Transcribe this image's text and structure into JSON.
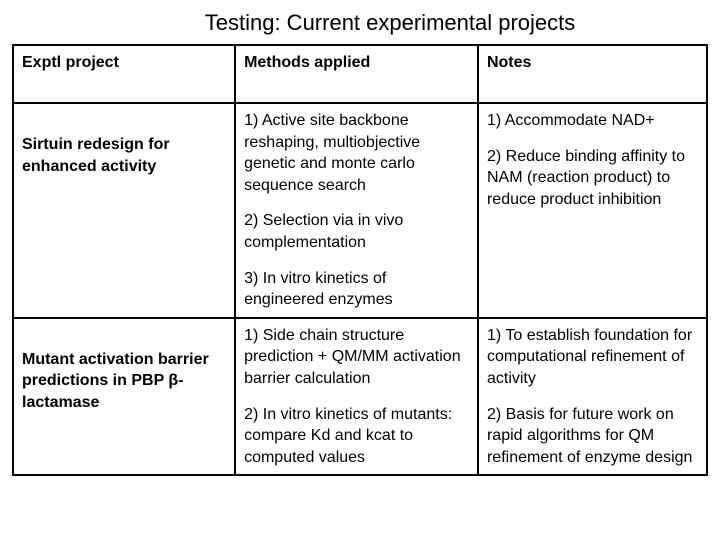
{
  "title": "Testing: Current experimental projects",
  "headers": {
    "col1": "Exptl project",
    "col2": "Methods applied",
    "col3": "Notes"
  },
  "rows": [
    {
      "project": "Sirtuin redesign for enhanced activity",
      "methods": [
        "1) Active site backbone reshaping, multiobjective genetic and monte carlo sequence search",
        "2) Selection via in vivo complementation",
        "3) In vitro kinetics of engineered enzymes"
      ],
      "notes": [
        "1) Accommodate NAD+",
        "2) Reduce binding affinity to NAM (reaction product) to reduce product inhibition"
      ]
    },
    {
      "project": "Mutant activation barrier predictions in PBP β-lactamase",
      "methods": [
        "1) Side chain structure prediction + QM/MM activation barrier calculation",
        "2) In vitro kinetics of mutants: compare Kd and kcat to computed values"
      ],
      "notes": [
        "1) To establish foundation for computational refinement of activity",
        "2) Basis for future work on rapid algorithms for QM refinement of enzyme design"
      ]
    }
  ],
  "styling": {
    "background_color": "#ffffff",
    "text_color": "#000000",
    "border_color": "#000000",
    "border_width": 2,
    "title_fontsize": 22,
    "body_fontsize": 16,
    "font_family": "Arial",
    "col_widths_pct": [
      32,
      35,
      33
    ]
  }
}
